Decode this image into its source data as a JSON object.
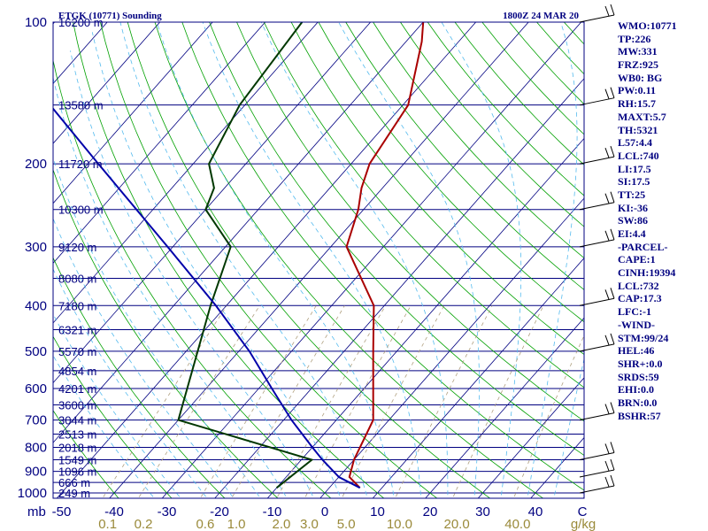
{
  "chart_data": {
    "type": "line",
    "title": "ETGK (10771) Sounding",
    "valid_time": "1800Z 24 MAR 20",
    "pressure_axis": {
      "ticks": [
        100,
        200,
        300,
        400,
        500,
        600,
        700,
        800,
        900,
        1000
      ],
      "unit_label": "mb"
    },
    "temperature_axis": {
      "ticks": [
        -50,
        -40,
        -30,
        -20,
        -10,
        0,
        10,
        20,
        30,
        40
      ],
      "unit_label": "C"
    },
    "mixing_ratio_axis": {
      "ticks": [
        "0.1",
        "0.2",
        "0.6",
        "1.0",
        "2.0",
        "3.0",
        "5.0",
        "10.0",
        "20.0",
        "40.0"
      ],
      "unit_label": "g/kg"
    },
    "height_levels": [
      {
        "p": 100,
        "label": "16200 m"
      },
      {
        "p": 150,
        "label": "13580 m"
      },
      {
        "p": 200,
        "label": "11720 m"
      },
      {
        "p": 250,
        "label": "10300 m"
      },
      {
        "p": 300,
        "label": "9120 m"
      },
      {
        "p": 350,
        "label": "8080 m"
      },
      {
        "p": 400,
        "label": "7180 m"
      },
      {
        "p": 450,
        "label": "6321 m"
      },
      {
        "p": 500,
        "label": "5570 m"
      },
      {
        "p": 550,
        "label": "4854 m"
      },
      {
        "p": 600,
        "label": "4201 m"
      },
      {
        "p": 650,
        "label": "3600 m"
      },
      {
        "p": 700,
        "label": "3044 m"
      },
      {
        "p": 750,
        "label": "2513 m"
      },
      {
        "p": 800,
        "label": "2018 m"
      },
      {
        "p": 850,
        "label": "1549 m"
      },
      {
        "p": 900,
        "label": "1096 m"
      },
      {
        "p": 950,
        "label": "666 m"
      },
      {
        "p": 1000,
        "label": "249 m"
      }
    ],
    "series": [
      {
        "name": "temperature",
        "color": "#aa0000",
        "points": [
          {
            "p": 975,
            "t": 5.8
          },
          {
            "p": 925,
            "t": 2.0
          },
          {
            "p": 850,
            "t": 0.0
          },
          {
            "p": 700,
            "t": -3.0
          },
          {
            "p": 500,
            "t": -14.5
          },
          {
            "p": 400,
            "t": -22.0
          },
          {
            "p": 300,
            "t": -37.0
          },
          {
            "p": 250,
            "t": -41.0
          },
          {
            "p": 225,
            "t": -44.0
          },
          {
            "p": 200,
            "t": -46.5
          },
          {
            "p": 150,
            "t": -49.0
          },
          {
            "p": 110,
            "t": -57.0
          },
          {
            "p": 100,
            "t": -60.0
          }
        ]
      },
      {
        "name": "dewpoint",
        "color": "#003800",
        "points": [
          {
            "p": 975,
            "t": -10.0
          },
          {
            "p": 850,
            "t": -8.0
          },
          {
            "p": 700,
            "t": -40.0
          },
          {
            "p": 400,
            "t": -53.0
          },
          {
            "p": 300,
            "t": -59.0
          },
          {
            "p": 250,
            "t": -70.0
          },
          {
            "p": 225,
            "t": -72.0
          },
          {
            "p": 200,
            "t": -77.0
          },
          {
            "p": 150,
            "t": -81.0
          },
          {
            "p": 100,
            "t": -83.0
          }
        ]
      },
      {
        "name": "parcel",
        "color": "#0000aa",
        "points": [
          {
            "p": 975,
            "t": 5.8
          },
          {
            "p": 925,
            "t": 0.0
          },
          {
            "p": 850,
            "t": -6.0
          },
          {
            "p": 800,
            "t": -10.0
          },
          {
            "p": 700,
            "t": -18.5
          },
          {
            "p": 600,
            "t": -27.5
          },
          {
            "p": 500,
            "t": -38.0
          },
          {
            "p": 400,
            "t": -52.0
          },
          {
            "p": 300,
            "t": -71.0
          },
          {
            "p": 200,
            "t": -98.0
          },
          {
            "p": 150,
            "t": -117.0
          },
          {
            "p": 100,
            "t": -143.0
          }
        ]
      }
    ],
    "wind_barbs": [
      {
        "p": 100
      },
      {
        "p": 150
      },
      {
        "p": 200
      },
      {
        "p": 250
      },
      {
        "p": 300
      },
      {
        "p": 400
      },
      {
        "p": 500
      },
      {
        "p": 700
      },
      {
        "p": 850
      },
      {
        "p": 925
      },
      {
        "p": 1000
      }
    ],
    "colors": {
      "frame": "#000080",
      "isotherm": "#000080",
      "dry_adiabat": "#00a000",
      "moist_adiabat": "#55bbee",
      "mixing_ratio": "#b0a080",
      "mixing_label": "#9a8a3a"
    },
    "grid": true
  },
  "indices": [
    "WMO:10771",
    "TP:226",
    "MW:331",
    "FRZ:925",
    "WB0: BG",
    "PW:0.11",
    "RH:15.7",
    "MAXT:5.7",
    "TH:5321",
    "L57:4.4",
    "LCL:740",
    "LI:17.5",
    "SI:17.5",
    "TT:25",
    "KI:-36",
    "SW:86",
    "EI:4.4",
    "-PARCEL-",
    "CAPE:1",
    "CINH:19394",
    "LCL:732",
    "CAP:17.3",
    "LFC:-1",
    "-WIND-",
    "STM:99/24",
    "HEL:46",
    "SHR+:0.0",
    "SRDS:59",
    "EHI:0.0",
    "BRN:0.0",
    "BSHR:57"
  ]
}
